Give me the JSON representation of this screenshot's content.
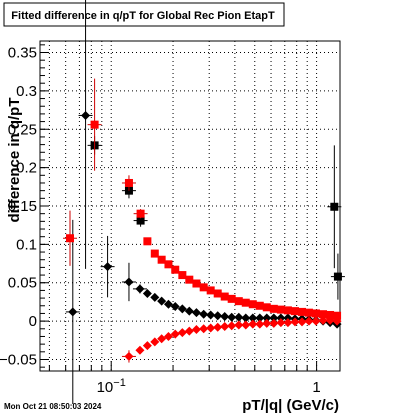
{
  "chart_data": {
    "type": "scatter",
    "title": "Fitted difference in q/pT for Global Rec Pion EtapT",
    "xlabel": "pT/|q| (GeV/c)",
    "ylabel": "difference in q/pT",
    "timestamp": "Mon Oct 21 08:50:03 2024",
    "x_scale": "log",
    "xlim": [
      0.045,
      1.3
    ],
    "ylim": [
      -0.065,
      0.365
    ],
    "grid": true,
    "x_tick_labels": [
      {
        "value": 0.1,
        "base": "10",
        "exp": "−1"
      },
      {
        "value": 1,
        "base": "1",
        "exp": ""
      }
    ],
    "y_ticks": [
      -0.05,
      0,
      0.05,
      0.1,
      0.15,
      0.2,
      0.25,
      0.3,
      0.35
    ],
    "y_tick_labels": [
      "−0.05",
      "0",
      "0.05",
      "0.1",
      "0.15",
      "0.2",
      "0.25",
      "0.3",
      "0.35"
    ],
    "colors": {
      "red": "#ff0000",
      "black": "#000000",
      "darkred": "#990000"
    },
    "series": [
      {
        "marker": "diamond",
        "color": "#000000",
        "points": [
          {
            "x": 0.065,
            "y": 0.012,
            "yerr": 0.12
          },
          {
            "x": 0.075,
            "y": 0.268,
            "yerr": 0.2
          },
          {
            "x": 0.096,
            "y": 0.071,
            "yerr": 0.04
          },
          {
            "x": 0.122,
            "y": 0.051,
            "yerr": 0.025
          },
          {
            "x": 0.138,
            "y": 0.042,
            "yerr": 0.006
          },
          {
            "x": 0.15,
            "y": 0.036
          },
          {
            "x": 0.163,
            "y": 0.031
          },
          {
            "x": 0.176,
            "y": 0.026
          },
          {
            "x": 0.19,
            "y": 0.022
          },
          {
            "x": 0.205,
            "y": 0.019
          },
          {
            "x": 0.222,
            "y": 0.016
          },
          {
            "x": 0.24,
            "y": 0.013
          },
          {
            "x": 0.26,
            "y": 0.011
          },
          {
            "x": 0.282,
            "y": 0.009
          },
          {
            "x": 0.305,
            "y": 0.008
          },
          {
            "x": 0.33,
            "y": 0.007
          },
          {
            "x": 0.357,
            "y": 0.006
          },
          {
            "x": 0.386,
            "y": 0.005
          },
          {
            "x": 0.418,
            "y": 0.005
          },
          {
            "x": 0.452,
            "y": 0.004
          },
          {
            "x": 0.489,
            "y": 0.004
          },
          {
            "x": 0.529,
            "y": 0.004
          },
          {
            "x": 0.572,
            "y": 0.004
          },
          {
            "x": 0.619,
            "y": 0.004
          },
          {
            "x": 0.67,
            "y": 0.004
          },
          {
            "x": 0.725,
            "y": 0.004
          },
          {
            "x": 0.785,
            "y": 0.003
          },
          {
            "x": 0.849,
            "y": 0.003
          },
          {
            "x": 0.918,
            "y": 0.002
          },
          {
            "x": 0.993,
            "y": 0.001
          },
          {
            "x": 1.075,
            "y": 0.0
          },
          {
            "x": 1.163,
            "y": -0.002
          },
          {
            "x": 1.258,
            "y": -0.004
          }
        ]
      },
      {
        "marker": "square",
        "color": "#000000",
        "points": [
          {
            "x": 0.083,
            "y": 0.229,
            "yerr": 0.012
          },
          {
            "x": 0.122,
            "y": 0.17,
            "yerr": 0.01
          },
          {
            "x": 0.139,
            "y": 0.131,
            "yerr": 0.008
          },
          {
            "x": 1.22,
            "y": 0.149,
            "yerr": 0.08
          },
          {
            "x": 1.27,
            "y": 0.058,
            "yerr": 0.03
          }
        ]
      },
      {
        "marker": "square",
        "color": "#ff0000",
        "points": [
          {
            "x": 0.063,
            "y": 0.108,
            "yerr": 0.036
          },
          {
            "x": 0.083,
            "y": 0.256,
            "yerr": 0.06
          },
          {
            "x": 0.122,
            "y": 0.18,
            "yerr": 0.01
          },
          {
            "x": 0.139,
            "y": 0.14,
            "yerr": 0.006
          },
          {
            "x": 0.15,
            "y": 0.104
          },
          {
            "x": 0.163,
            "y": 0.088
          },
          {
            "x": 0.176,
            "y": 0.08
          },
          {
            "x": 0.19,
            "y": 0.074
          },
          {
            "x": 0.205,
            "y": 0.067
          },
          {
            "x": 0.222,
            "y": 0.06
          },
          {
            "x": 0.24,
            "y": 0.054
          },
          {
            "x": 0.26,
            "y": 0.049
          },
          {
            "x": 0.282,
            "y": 0.044
          },
          {
            "x": 0.305,
            "y": 0.04
          },
          {
            "x": 0.33,
            "y": 0.036
          },
          {
            "x": 0.357,
            "y": 0.032
          },
          {
            "x": 0.386,
            "y": 0.029
          },
          {
            "x": 0.418,
            "y": 0.026
          },
          {
            "x": 0.452,
            "y": 0.024
          },
          {
            "x": 0.489,
            "y": 0.022
          },
          {
            "x": 0.529,
            "y": 0.02
          },
          {
            "x": 0.572,
            "y": 0.018
          },
          {
            "x": 0.619,
            "y": 0.016
          },
          {
            "x": 0.67,
            "y": 0.015
          },
          {
            "x": 0.725,
            "y": 0.014
          },
          {
            "x": 0.785,
            "y": 0.013
          },
          {
            "x": 0.849,
            "y": 0.012
          },
          {
            "x": 0.918,
            "y": 0.011
          },
          {
            "x": 0.993,
            "y": 0.01
          },
          {
            "x": 1.075,
            "y": 0.009
          },
          {
            "x": 1.163,
            "y": 0.008
          },
          {
            "x": 1.258,
            "y": 0.007
          }
        ]
      },
      {
        "marker": "diamond",
        "color": "#ff0000",
        "points": [
          {
            "x": 0.122,
            "y": -0.046,
            "yerr": 0.008
          },
          {
            "x": 0.138,
            "y": -0.038
          },
          {
            "x": 0.15,
            "y": -0.032
          },
          {
            "x": 0.163,
            "y": -0.027
          },
          {
            "x": 0.176,
            "y": -0.023
          },
          {
            "x": 0.19,
            "y": -0.02
          },
          {
            "x": 0.205,
            "y": -0.017
          },
          {
            "x": 0.222,
            "y": -0.015
          },
          {
            "x": 0.24,
            "y": -0.013
          },
          {
            "x": 0.26,
            "y": -0.011
          },
          {
            "x": 0.282,
            "y": -0.01
          },
          {
            "x": 0.305,
            "y": -0.009
          },
          {
            "x": 0.33,
            "y": -0.008
          },
          {
            "x": 0.357,
            "y": -0.007
          },
          {
            "x": 0.386,
            "y": -0.006
          },
          {
            "x": 0.418,
            "y": -0.005
          },
          {
            "x": 0.452,
            "y": -0.005
          },
          {
            "x": 0.489,
            "y": -0.004
          },
          {
            "x": 0.529,
            "y": -0.004
          },
          {
            "x": 0.572,
            "y": -0.003
          },
          {
            "x": 0.619,
            "y": -0.003
          },
          {
            "x": 0.67,
            "y": -0.002
          },
          {
            "x": 0.725,
            "y": -0.002
          },
          {
            "x": 0.785,
            "y": -0.001
          },
          {
            "x": 0.849,
            "y": -0.001
          },
          {
            "x": 0.918,
            "y": 0.0
          },
          {
            "x": 0.993,
            "y": 0.0
          },
          {
            "x": 1.075,
            "y": 0.001
          },
          {
            "x": 1.163,
            "y": 0.001
          },
          {
            "x": 1.258,
            "y": 0.0
          }
        ]
      }
    ]
  }
}
